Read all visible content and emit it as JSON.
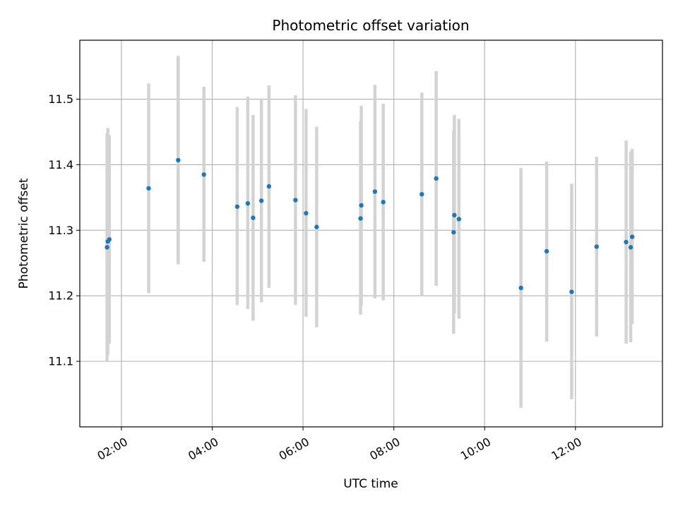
{
  "chart_data": {
    "type": "scatter",
    "title": "Photometric offset variation",
    "xlabel": "UTC time",
    "ylabel": "Photometric offset",
    "x_axis_kind": "time",
    "xlim": [
      "01:05",
      "13:55"
    ],
    "ylim": [
      11.0,
      11.59
    ],
    "grid": true,
    "x_ticks": [
      "02:00",
      "04:00",
      "06:00",
      "08:00",
      "10:00",
      "12:00"
    ],
    "y_ticks": [
      11.1,
      11.2,
      11.3,
      11.4,
      11.5
    ],
    "y_tick_labels": [
      "11.1",
      "11.2",
      "11.3",
      "11.4",
      "11.5"
    ],
    "point_color": "#1f77b4",
    "errorbar_color": "#d3d3d3",
    "points": [
      {
        "x": "01:41",
        "y": 11.274,
        "ylow": 11.1,
        "yhigh": 11.448
      },
      {
        "x": "01:42",
        "y": 11.283,
        "ylow": 11.11,
        "yhigh": 11.456
      },
      {
        "x": "01:44",
        "y": 11.286,
        "ylow": 11.127,
        "yhigh": 11.445
      },
      {
        "x": "02:36",
        "y": 11.364,
        "ylow": 11.204,
        "yhigh": 11.524
      },
      {
        "x": "03:15",
        "y": 11.407,
        "ylow": 11.248,
        "yhigh": 11.566
      },
      {
        "x": "03:49",
        "y": 11.385,
        "ylow": 11.252,
        "yhigh": 11.519
      },
      {
        "x": "04:33",
        "y": 11.336,
        "ylow": 11.186,
        "yhigh": 11.488
      },
      {
        "x": "04:47",
        "y": 11.341,
        "ylow": 11.18,
        "yhigh": 11.504
      },
      {
        "x": "04:54",
        "y": 11.319,
        "ylow": 11.162,
        "yhigh": 11.476
      },
      {
        "x": "05:05",
        "y": 11.345,
        "ylow": 11.19,
        "yhigh": 11.501
      },
      {
        "x": "05:15",
        "y": 11.367,
        "ylow": 11.212,
        "yhigh": 11.521
      },
      {
        "x": "05:50",
        "y": 11.346,
        "ylow": 11.186,
        "yhigh": 11.506
      },
      {
        "x": "06:04",
        "y": 11.326,
        "ylow": 11.168,
        "yhigh": 11.485
      },
      {
        "x": "06:18",
        "y": 11.305,
        "ylow": 11.152,
        "yhigh": 11.458
      },
      {
        "x": "07:16",
        "y": 11.318,
        "ylow": 11.171,
        "yhigh": 11.466
      },
      {
        "x": "07:17",
        "y": 11.338,
        "ylow": 11.185,
        "yhigh": 11.49
      },
      {
        "x": "07:35",
        "y": 11.359,
        "ylow": 11.196,
        "yhigh": 11.522
      },
      {
        "x": "07:46",
        "y": 11.343,
        "ylow": 11.193,
        "yhigh": 11.493
      },
      {
        "x": "08:37",
        "y": 11.355,
        "ylow": 11.2,
        "yhigh": 11.51
      },
      {
        "x": "08:56",
        "y": 11.379,
        "ylow": 11.215,
        "yhigh": 11.543
      },
      {
        "x": "09:19",
        "y": 11.297,
        "ylow": 11.142,
        "yhigh": 11.452
      },
      {
        "x": "09:20",
        "y": 11.323,
        "ylow": 11.173,
        "yhigh": 11.476
      },
      {
        "x": "09:26",
        "y": 11.317,
        "ylow": 11.165,
        "yhigh": 11.47
      },
      {
        "x": "10:48",
        "y": 11.212,
        "ylow": 11.029,
        "yhigh": 11.395
      },
      {
        "x": "11:22",
        "y": 11.268,
        "ylow": 11.13,
        "yhigh": 11.405
      },
      {
        "x": "11:55",
        "y": 11.206,
        "ylow": 11.042,
        "yhigh": 11.371
      },
      {
        "x": "12:28",
        "y": 11.275,
        "ylow": 11.138,
        "yhigh": 11.412
      },
      {
        "x": "13:07",
        "y": 11.282,
        "ylow": 11.127,
        "yhigh": 11.437
      },
      {
        "x": "13:13",
        "y": 11.274,
        "ylow": 11.129,
        "yhigh": 11.42
      },
      {
        "x": "13:15",
        "y": 11.29,
        "ylow": 11.157,
        "yhigh": 11.424
      }
    ]
  }
}
